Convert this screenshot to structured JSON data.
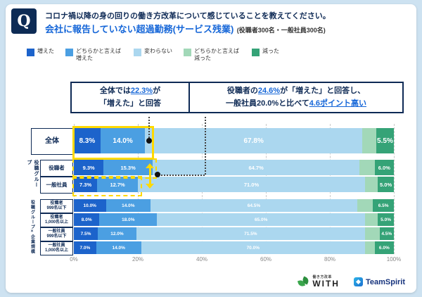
{
  "header": {
    "q_badge": "Q",
    "title": "コロナ禍以降の身の回りの働き方改革について感じていることを教えてください。",
    "subtitle": "会社に報告していない超過勤務(サービス残業)",
    "subtitle_note": "(役職者300名・一般社員300名)"
  },
  "legend": {
    "items": [
      {
        "label": "増えた",
        "color": "#1c63cb"
      },
      {
        "label": "どちらかと言えば増えた",
        "color": "#4b9fe2"
      },
      {
        "label": "変わらない",
        "color": "#abd7ef"
      },
      {
        "label": "どちらかと言えば減った",
        "color": "#a2d8b8"
      },
      {
        "label": "減った",
        "color": "#35a377"
      }
    ]
  },
  "callouts": {
    "c1_part1": "全体では",
    "c1_highlight": "22.3%",
    "c1_part2": "が",
    "c1_line2": "「増えた」と回答",
    "c2_part1": "役職者の",
    "c2_highlight1": "24.6%",
    "c2_part2": "が「増えた」と回答し、",
    "c2_part3": "一般社員20.0%と比べて",
    "c2_highlight2": "4.6ポイント高い"
  },
  "chart_data": {
    "type": "bar",
    "variant": "horizontal-stacked",
    "title": "会社に報告していない超過勤務(サービス残業)",
    "series_names": [
      "増えた",
      "どちらかと言えば増えた",
      "変わらない",
      "どちらかと言えば減った",
      "減った"
    ],
    "colors": [
      "#1c63cb",
      "#4b9fe2",
      "#abd7ef",
      "#a2d8b8",
      "#35a377"
    ],
    "x_ticks": [
      "0%",
      "20%",
      "40%",
      "60%",
      "80%",
      "100%"
    ],
    "xlim": [
      0,
      100
    ],
    "group_labels": [
      "役職グループ",
      "役職グループ×企業規模"
    ],
    "rows": [
      {
        "group": "",
        "label": "全体",
        "label2": "",
        "values": [
          8.3,
          14.0,
          67.8,
          4.4,
          5.5
        ],
        "value_labels": [
          "8.3%",
          "14.0%",
          "67.8%",
          "",
          "5.5%"
        ]
      },
      {
        "group": "役職グループ",
        "label": "役職者",
        "label2": "",
        "values": [
          9.3,
          15.3,
          64.7,
          4.7,
          6.0
        ],
        "value_labels": [
          "9.3%",
          "15.3%",
          "64.7%",
          "",
          "6.0%"
        ]
      },
      {
        "group": "役職グループ",
        "label": "一般社員",
        "label2": "",
        "values": [
          7.3,
          12.7,
          71.0,
          4.0,
          5.0
        ],
        "value_labels": [
          "7.3%",
          "12.7%",
          "71.0%",
          "",
          "5.0%"
        ]
      },
      {
        "group": "役職グループ×企業規模",
        "label": "役職者",
        "label2": "999名以下",
        "values": [
          10.0,
          14.0,
          64.5,
          5.0,
          6.5
        ],
        "value_labels": [
          "10.0%",
          "14.0%",
          "64.5%",
          "",
          "6.5%"
        ]
      },
      {
        "group": "役職グループ×企業規模",
        "label": "役職者",
        "label2": "1,000名以上",
        "values": [
          8.0,
          18.0,
          65.0,
          4.0,
          5.0
        ],
        "value_labels": [
          "8.0%",
          "18.0%",
          "65.0%",
          "",
          "5.0%"
        ]
      },
      {
        "group": "役職グループ×企業規模",
        "label": "一般社員",
        "label2": "999名以下",
        "values": [
          7.5,
          12.0,
          71.5,
          4.5,
          4.5
        ],
        "value_labels": [
          "7.5%",
          "12.0%",
          "71.5%",
          "",
          "4.5%"
        ]
      },
      {
        "group": "役職グループ×企業規模",
        "label": "一般社員",
        "label2": "1,000名以上",
        "values": [
          7.0,
          14.0,
          70.0,
          3.0,
          6.0
        ],
        "value_labels": [
          "7.0%",
          "14.0%",
          "70.0%",
          "",
          "6.0%"
        ]
      }
    ]
  },
  "footer": {
    "logo1_top": "働き方改革",
    "logo1_main": "WITH",
    "logo2": "TeamSpirit"
  }
}
